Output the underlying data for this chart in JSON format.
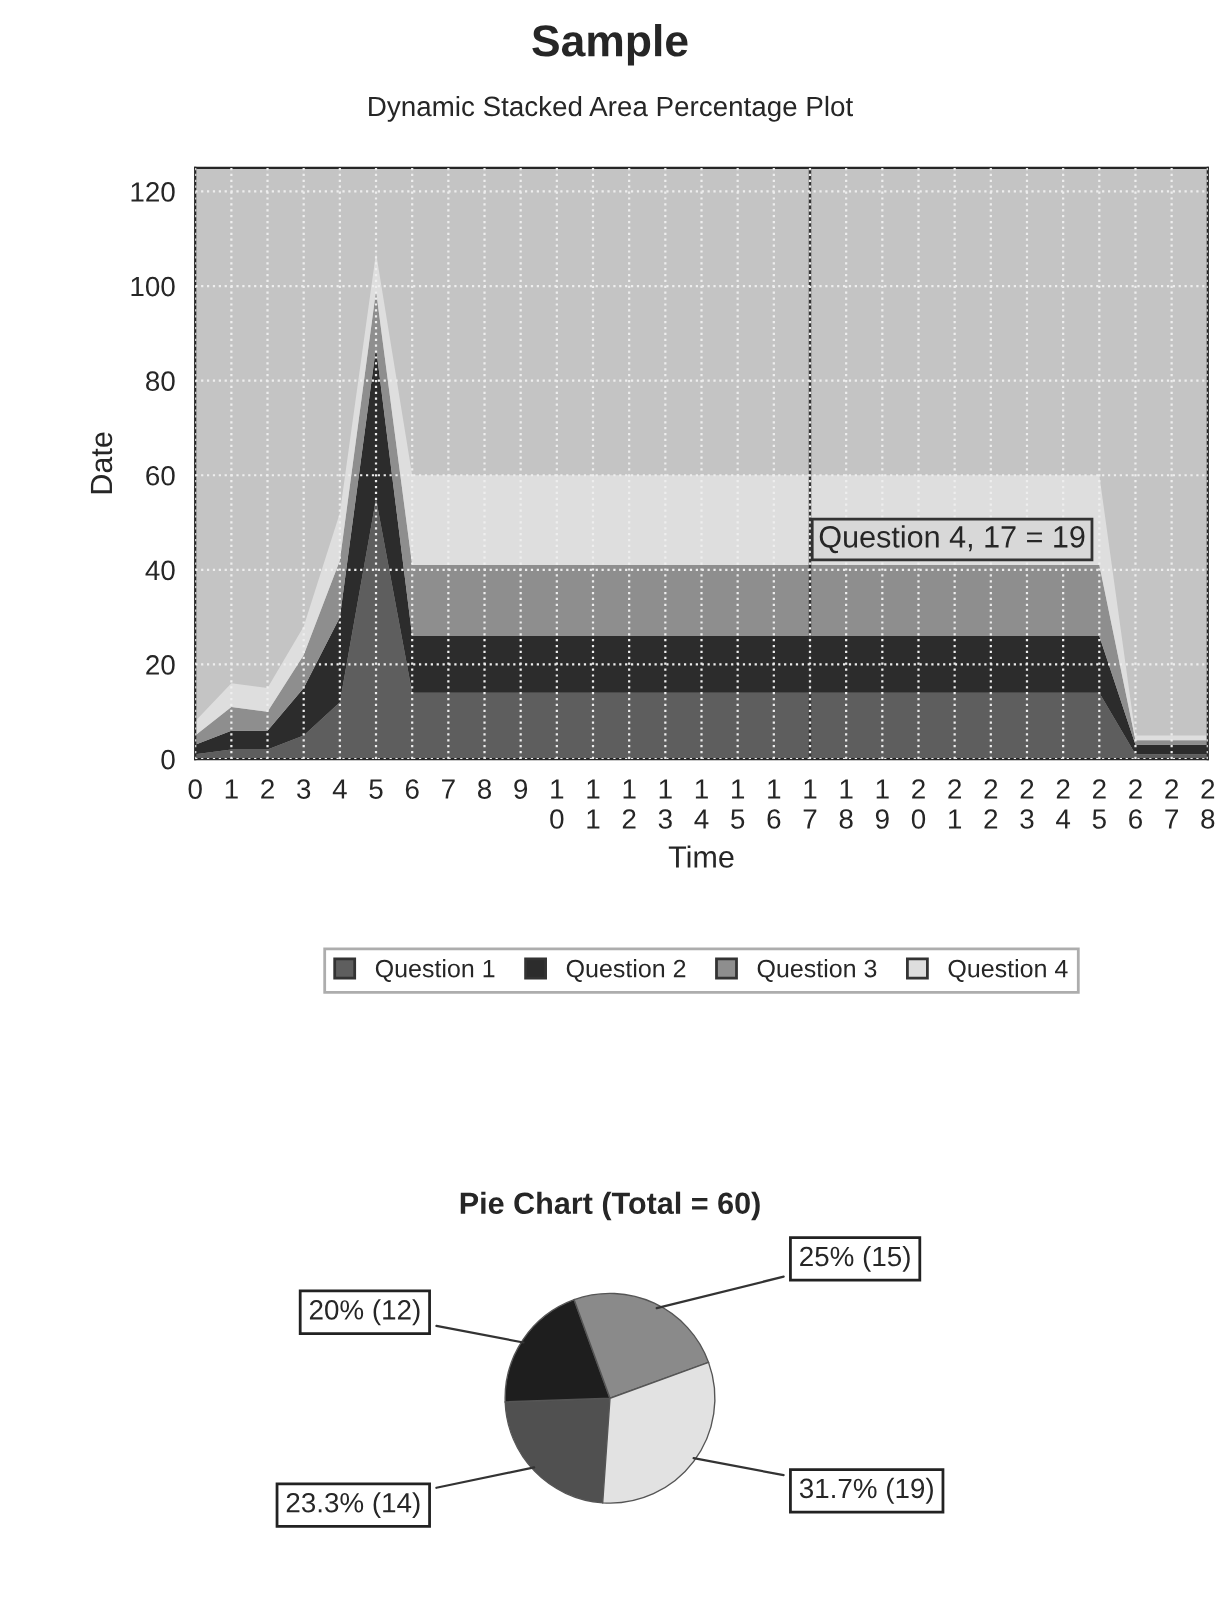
{
  "chart_data": [
    {
      "type": "area",
      "title": "Sample",
      "subtitle": "Dynamic Stacked Area Percentage Plot",
      "xlabel": "Time",
      "ylabel": "Date",
      "stacked": true,
      "x": [
        0,
        1,
        2,
        3,
        4,
        5,
        6,
        7,
        8,
        9,
        10,
        11,
        12,
        13,
        14,
        15,
        16,
        17,
        18,
        19,
        20,
        21,
        22,
        23,
        24,
        25,
        26,
        27,
        28
      ],
      "series": [
        {
          "name": "Question 1",
          "color": "#5e5e5e",
          "values": [
            1,
            2,
            2,
            5,
            12,
            55,
            14,
            14,
            14,
            14,
            14,
            14,
            14,
            14,
            14,
            14,
            14,
            14,
            14,
            14,
            14,
            14,
            14,
            14,
            14,
            14,
            1,
            1,
            1
          ]
        },
        {
          "name": "Question 2",
          "color": "#2c2c2c",
          "values": [
            2,
            4,
            4,
            10,
            18,
            32,
            12,
            12,
            12,
            12,
            12,
            12,
            12,
            12,
            12,
            12,
            12,
            12,
            12,
            12,
            12,
            12,
            12,
            12,
            12,
            12,
            2,
            2,
            2
          ]
        },
        {
          "name": "Question 3",
          "color": "#8e8e8e",
          "values": [
            2,
            5,
            4,
            7,
            12,
            12,
            15,
            15,
            15,
            15,
            15,
            15,
            15,
            15,
            15,
            15,
            15,
            15,
            15,
            15,
            15,
            15,
            15,
            15,
            15,
            15,
            1,
            1,
            1
          ]
        },
        {
          "name": "Question 4",
          "color": "#dedede",
          "values": [
            3,
            5,
            5,
            6,
            10,
            8,
            19,
            19,
            19,
            19,
            19,
            19,
            19,
            19,
            19,
            19,
            19,
            19,
            19,
            19,
            19,
            19,
            19,
            19,
            19,
            19,
            1,
            1,
            1
          ]
        }
      ],
      "xlim": [
        0,
        28
      ],
      "xticks": [
        0,
        1,
        2,
        3,
        4,
        5,
        6,
        7,
        8,
        9,
        10,
        11,
        12,
        13,
        14,
        15,
        16,
        17,
        18,
        19,
        20,
        21,
        22,
        23,
        24,
        25,
        26,
        27,
        28
      ],
      "ylim": [
        0,
        125
      ],
      "yticks": [
        0,
        20,
        40,
        60,
        80,
        100,
        120
      ],
      "grid": true,
      "legend": "bottom",
      "ref_lines": [
        {
          "axis": "x",
          "value": 17,
          "color": "#333333"
        }
      ],
      "annotations": [
        {
          "text": "Question 4, 17 = 19",
          "x": 17,
          "y": 60
        }
      ]
    },
    {
      "type": "pie",
      "title": "Pie Chart (Total = 60)",
      "categories": [
        null,
        null,
        null,
        null
      ],
      "values": [
        14,
        12,
        15,
        19
      ],
      "colors": [
        "#505050",
        "#1e1e1e",
        "#8a8a8a",
        "#e2e2e2"
      ],
      "value_labels": [
        "23.3% (14)",
        "20% (12)",
        "25% (15)",
        "31.7% (19)"
      ]
    }
  ]
}
